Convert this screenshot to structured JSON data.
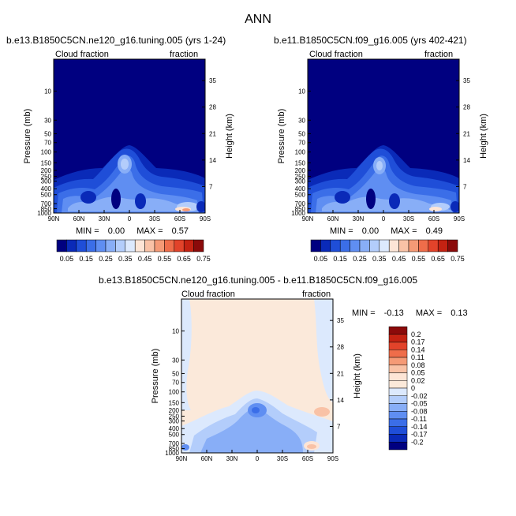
{
  "page": {
    "title": "ANN"
  },
  "panels": [
    {
      "id": "left",
      "case_title": "b.e13.B1850C5CN.ne120_g16.tuning.005 (yrs 1-24)",
      "variable_label": "Cloud fraction",
      "units_label": "fraction",
      "min_label": "MIN =",
      "min_value": "0.00",
      "max_label": "MAX =",
      "max_value": "0.57"
    },
    {
      "id": "right",
      "case_title": "b.e11.B1850C5CN.f09_g16.005 (yrs 402-421)",
      "variable_label": "Cloud fraction",
      "units_label": "fraction",
      "min_label": "MIN =",
      "min_value": "0.00",
      "max_label": "MAX =",
      "max_value": "0.49"
    },
    {
      "id": "diff",
      "case_title": "b.e13.B1850C5CN.ne120_g16.tuning.005 - b.e11.B1850C5CN.f09_g16.005",
      "variable_label": "Cloud fraction",
      "units_label": "fraction",
      "min_label": "MIN =",
      "min_value": "-0.13",
      "max_label": "MAX =",
      "max_value": "0.13"
    }
  ],
  "chart_data": {
    "type": "heatmap",
    "plot_kind": "zonal-mean pressure-latitude contour",
    "title": "ANN",
    "xlabel": "",
    "ylabel": "Pressure (mb)",
    "ylabel_right": "Height (km)",
    "x_ticks": [
      "90N",
      "60N",
      "30N",
      "0",
      "30S",
      "60S",
      "90S"
    ],
    "y_ticks": [
      "10",
      "30",
      "50",
      "70",
      "100",
      "150",
      "200",
      "250",
      "300",
      "400",
      "500",
      "700",
      "850",
      "1000"
    ],
    "y_ticks_left_panels": [
      "10",
      "30",
      "50",
      "70",
      "100",
      "150",
      "200",
      "250",
      "300",
      "400",
      "500",
      "700",
      "850",
      "1000"
    ],
    "height_ticks": [
      "35",
      "28",
      "21",
      "14",
      "7"
    ],
    "xlim": [
      90,
      -90
    ],
    "ylim_mb": [
      1000,
      3
    ],
    "colorbar_abs": {
      "levels": [
        "0.05",
        "0.15",
        "0.25",
        "0.35",
        "0.45",
        "0.55",
        "0.65",
        "0.75"
      ],
      "colors": [
        "#000080",
        "#0a2ab8",
        "#1f4ed8",
        "#3b6ee8",
        "#5f8ef2",
        "#88aef7",
        "#b3cdfb",
        "#dce9fd",
        "#fde5d6",
        "#f9c2a6",
        "#f59a76",
        "#ef6d4a",
        "#e2432a",
        "#c42212",
        "#8b0a0a"
      ]
    },
    "colorbar_diff": {
      "levels": [
        "0.2",
        "0.17",
        "0.14",
        "0.11",
        "0.08",
        "0.05",
        "0.02",
        "0",
        "-0.02",
        "-0.05",
        "-0.08",
        "-0.11",
        "-0.14",
        "-0.17",
        "-0.2"
      ],
      "colors": [
        "#8b0a0a",
        "#c42212",
        "#e2432a",
        "#ef6d4a",
        "#f59a76",
        "#f9c2a6",
        "#fde5d6",
        "#fbe9da",
        "#dce9fd",
        "#b3cdfb",
        "#88aef7",
        "#5f8ef2",
        "#3b6ee8",
        "#1f4ed8",
        "#0a2ab8",
        "#000080"
      ]
    },
    "series": [
      {
        "name": "b.e13.B1850C5CN.ne120_g16.tuning.005 (yrs 1-24)",
        "min": 0.0,
        "max": 0.57
      },
      {
        "name": "b.e11.B1850C5CN.f09_g16.005 (yrs 402-421)",
        "min": 0.0,
        "max": 0.49
      },
      {
        "name": "difference",
        "min": -0.13,
        "max": 0.13
      }
    ]
  }
}
